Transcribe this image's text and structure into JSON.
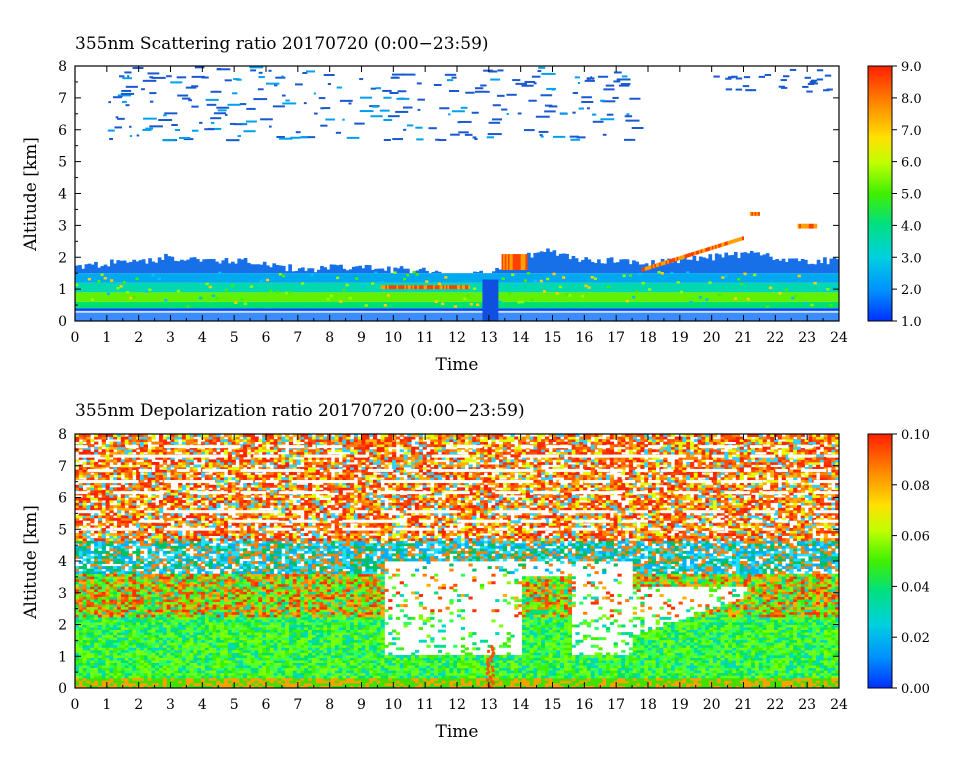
{
  "chart_data": [
    {
      "type": "heatmap",
      "title": "355nm Scattering ratio  20170720 (0:00−23:59)",
      "xlabel": "Time",
      "ylabel": "Altitude [km]",
      "xlim": [
        0,
        24
      ],
      "ylim": [
        0,
        8
      ],
      "x_ticks": [
        "0",
        "1",
        "2",
        "3",
        "4",
        "5",
        "6",
        "7",
        "8",
        "9",
        "10",
        "11",
        "12",
        "13",
        "14",
        "15",
        "16",
        "17",
        "18",
        "19",
        "20",
        "21",
        "22",
        "23",
        "24"
      ],
      "y_ticks": [
        "0",
        "1",
        "2",
        "3",
        "4",
        "5",
        "6",
        "7",
        "8"
      ],
      "colorbar": {
        "range": [
          1.0,
          9.0
        ],
        "ticks": [
          "1.0",
          "2.0",
          "3.0",
          "4.0",
          "5.0",
          "6.0",
          "7.0",
          "8.0",
          "9.0"
        ]
      },
      "layers": [
        {
          "feature": "boundary layer",
          "top_altitude_km": [
            1.7,
            1.8,
            1.9,
            2.0,
            1.9,
            1.9,
            1.8,
            1.6,
            1.7,
            1.7,
            1.6,
            1.6,
            1.4,
            1.5,
            2.0,
            2.2,
            1.9,
            1.9,
            1.8,
            1.9,
            2.0,
            2.1,
            2.0,
            1.9,
            1.9
          ]
        },
        {
          "feature": "high clouds",
          "altitude_range_km": [
            5.8,
            8.0
          ],
          "time_range_h": [
            1,
            17
          ]
        }
      ]
    },
    {
      "type": "heatmap",
      "title": "355nm Depolarization ratio  20170720 (0:00−23:59)",
      "xlabel": "Time",
      "ylabel": "Altitude [km]",
      "xlim": [
        0,
        24
      ],
      "ylim": [
        0,
        8
      ],
      "x_ticks": [
        "0",
        "1",
        "2",
        "3",
        "4",
        "5",
        "6",
        "7",
        "8",
        "9",
        "10",
        "11",
        "12",
        "13",
        "14",
        "15",
        "16",
        "17",
        "18",
        "19",
        "20",
        "21",
        "22",
        "23",
        "24"
      ],
      "y_ticks": [
        "0",
        "1",
        "2",
        "3",
        "4",
        "5",
        "6",
        "7",
        "8"
      ],
      "colorbar": {
        "range": [
          0.0,
          0.1
        ],
        "ticks": [
          "0.00",
          "0.02",
          "0.04",
          "0.06",
          "0.08",
          "0.10"
        ]
      }
    }
  ],
  "colors": {
    "scale": [
      "#0000ff",
      "#0060ff",
      "#00b0ff",
      "#00e0c0",
      "#00e060",
      "#40ff00",
      "#c0ff00",
      "#ffff00",
      "#ffc000",
      "#ff7000",
      "#ff2000"
    ]
  }
}
